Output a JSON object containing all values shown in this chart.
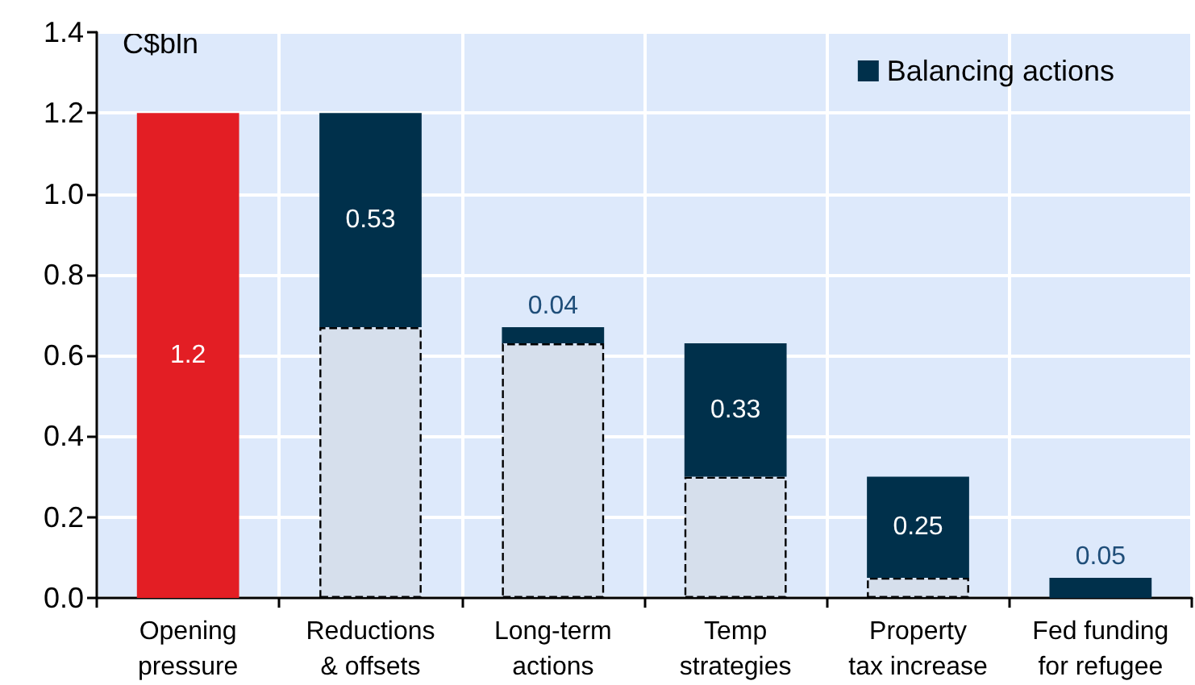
{
  "chart_data": {
    "type": "bar",
    "annotations": [
      "C$bln"
    ],
    "categories": [
      "Opening\npressure",
      "Reductions\n& offsets",
      "Long-term\nactions",
      "Temp\nstrategies",
      "Property\ntax increase",
      "Fed funding\nfor refugee"
    ],
    "stacked": true,
    "series": [
      {
        "color": "#e31e24",
        "values": [
          1.2,
          null,
          null,
          null,
          null,
          null
        ],
        "value_labels": [
          "1.2",
          null,
          null,
          null,
          null,
          null
        ]
      },
      {
        "color": "#d6dfec",
        "line_style": "dashed",
        "values": [
          null,
          0.67,
          0.63,
          0.3,
          0.05,
          null
        ]
      },
      {
        "name": "Balancing actions",
        "color": "#00304b",
        "values": [
          null,
          0.53,
          0.04,
          0.33,
          0.25,
          0.05
        ],
        "value_labels": [
          null,
          "0.53",
          "0.04",
          "0.33",
          "0.25",
          "0.05"
        ]
      }
    ],
    "ylim": [
      0,
      1.4
    ],
    "yticks": [
      {
        "value": 0,
        "label": "0.0"
      },
      {
        "value": 0.2,
        "label": "0.2"
      },
      {
        "value": 0.4,
        "label": "0.4"
      },
      {
        "value": 0.6,
        "label": "0.6"
      },
      {
        "value": 0.8,
        "label": "0.8"
      },
      {
        "value": 1,
        "label": "1.0"
      },
      {
        "value": 1.2,
        "label": "1.2"
      },
      {
        "value": 1.4,
        "label": "1.4"
      }
    ],
    "grid": true,
    "legend": "top right"
  }
}
